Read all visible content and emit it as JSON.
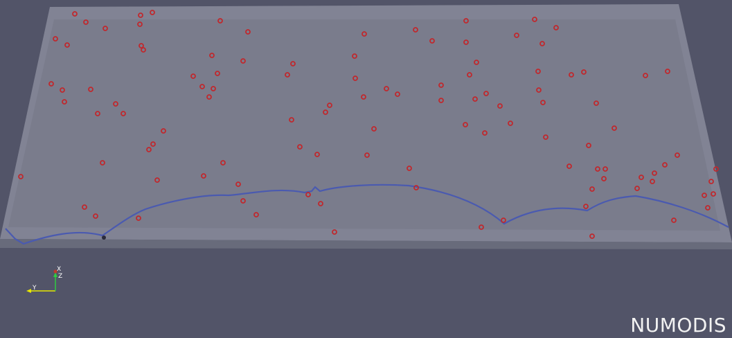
{
  "window": {
    "brand": "NUMODIS"
  },
  "orientation_triad": {
    "x_label": "X",
    "y_label": "Y",
    "z_label": "Z",
    "x_color": "#c0392b",
    "y_color": "#e8e800",
    "z_color": "#2ecc40"
  },
  "colors": {
    "background": "#525468",
    "slab_inner": "#787a8a",
    "slab_edge": "#8d8f9e",
    "dislocation_line": "#4a5ab0",
    "particle": "#c0282d"
  },
  "icons": {
    "triad": "orientation-axes-icon"
  }
}
